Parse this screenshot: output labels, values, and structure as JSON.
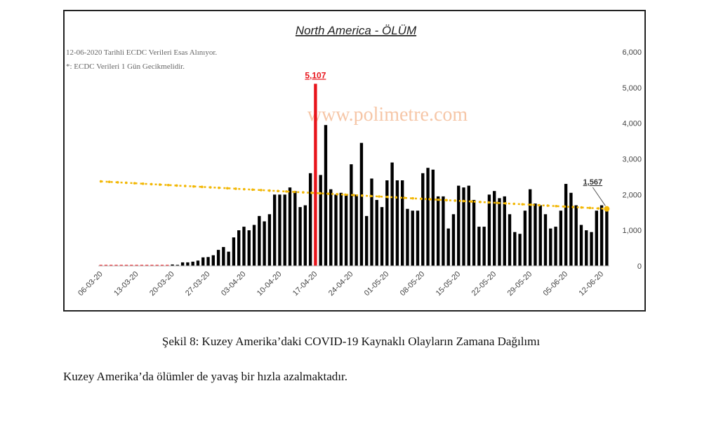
{
  "page": {
    "caption": "Şekil 8: Kuzey Amerika’daki COVID-19 Kaynaklı Olayların Zamana Dağılımı",
    "body_text": "Kuzey Amerika’da ölümler de yavaş bir hızla azalmaktadır."
  },
  "chart_data": {
    "type": "bar",
    "title": "North America - ÖLÜM",
    "notes": [
      "12-06-2020 Tarihli ECDC Verileri Esas Alınıyor.",
      "*: ECDC Verileri 1 Gün Gecikmelidir."
    ],
    "watermark": "www.polimetre.com",
    "start_date": "06-03-20",
    "x_tick_labels": [
      "06-03-20",
      "13-03-20",
      "20-03-20",
      "27-03-20",
      "03-04-20",
      "10-04-20",
      "17-04-20",
      "24-04-20",
      "01-05-20",
      "08-05-20",
      "15-05-20",
      "22-05-20",
      "29-05-20",
      "05-06-20",
      "12-06-20"
    ],
    "y_ticks": [
      0,
      1000,
      2000,
      3000,
      4000,
      5000,
      6000
    ],
    "y_tick_labels": [
      "0",
      "1,000",
      "2,000",
      "3,000",
      "4,000",
      "5,000",
      "6,000"
    ],
    "ylim": [
      0,
      6000
    ],
    "values": [
      0,
      0,
      0,
      0,
      0,
      0,
      0,
      0,
      0,
      0,
      0,
      0,
      0,
      0,
      40,
      30,
      100,
      100,
      120,
      150,
      240,
      250,
      300,
      450,
      530,
      400,
      800,
      1000,
      1100,
      1000,
      1150,
      1400,
      1250,
      1450,
      2000,
      2000,
      2000,
      2200,
      2100,
      1650,
      1700,
      2600,
      5107,
      2550,
      3950,
      2150,
      2000,
      2050,
      2000,
      2850,
      2000,
      3450,
      1400,
      2450,
      1850,
      1650,
      2400,
      2900,
      2400,
      2400,
      1600,
      1550,
      1550,
      2600,
      2750,
      2700,
      1950,
      1950,
      1050,
      1450,
      2250,
      2200,
      2250,
      1850,
      1100,
      1100,
      2000,
      2100,
      1900,
      1950,
      1450,
      950,
      900,
      1550,
      2150,
      1750,
      1700,
      1450,
      1050,
      1100,
      1550,
      2300,
      2050,
      1700,
      1150,
      1000,
      950,
      1550,
      1700,
      1567
    ],
    "highlight": {
      "index": 42,
      "label": "5,107",
      "color": "#e8141b"
    },
    "last_label": "1,567",
    "trendline": {
      "start": 2370,
      "end": 1600,
      "color": "#f2b705"
    },
    "bar_color": "#000000",
    "gridlines": false
  }
}
